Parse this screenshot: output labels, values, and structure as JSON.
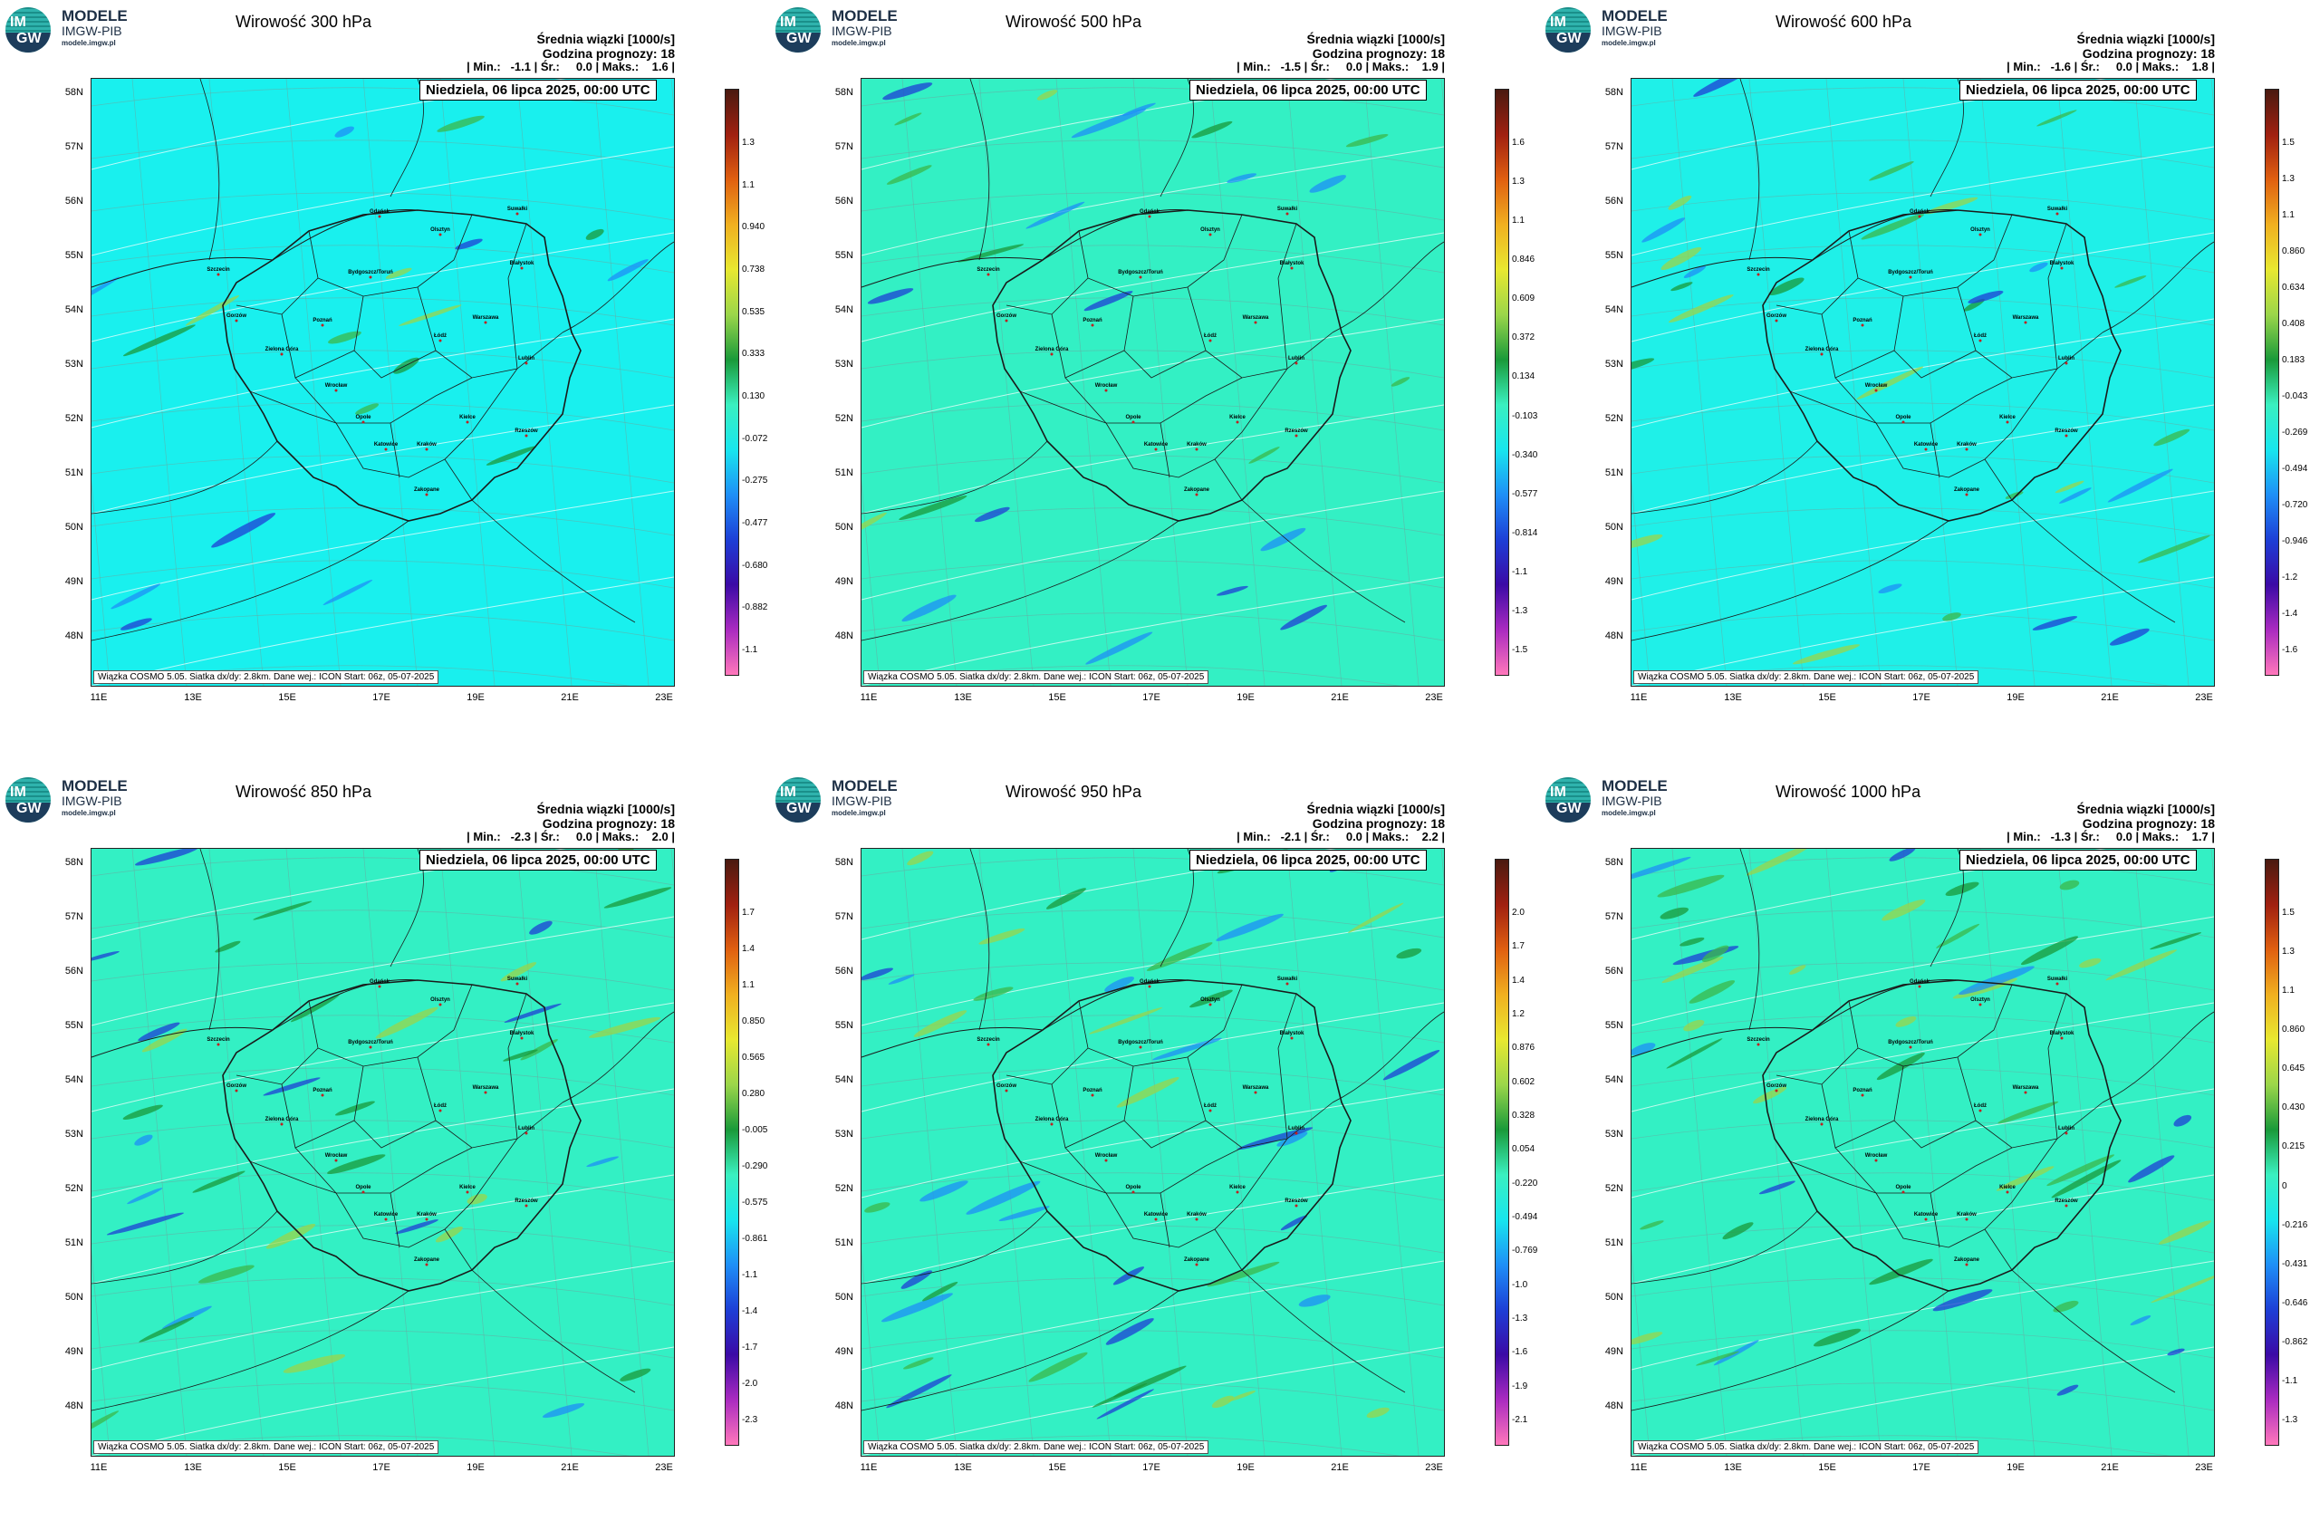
{
  "logo": {
    "line1": "MODELE",
    "line2": "IMGW-PIB",
    "line3": "modele.imgw.pl",
    "im": "IM",
    "gw": "GW"
  },
  "header": {
    "line1": "Średnia wiązki [1000/s]",
    "line2": "Godzina prognozy: 18",
    "date": "Niedziela, 06 lipca 2025, 00:00 UTC",
    "footer": "Wiązka  COSMO  5.05.  Siatka  dx/dy:  2.8km.  Dane  wej.:  ICON  Start:  06z,  05-07-2025"
  },
  "axes": {
    "lat_labels": [
      "58N",
      "57N",
      "56N",
      "55N",
      "54N",
      "53N",
      "52N",
      "51N",
      "50N",
      "49N",
      "48N"
    ],
    "lon_labels": [
      "11E",
      "13E",
      "15E",
      "17E",
      "19E",
      "21E",
      "23E"
    ]
  },
  "cities": [
    "Gdańsk",
    "Olsztyn",
    "Suwałki",
    "Szczecin",
    "Bydgoszcz/Toruń",
    "Białystok",
    "Gorzów",
    "Poznań",
    "Warszawa",
    "Zielona Góra",
    "Łódź",
    "Lublin",
    "Wrocław",
    "Opole",
    "Kielce",
    "Rzeszów",
    "Katowice",
    "Kraków",
    "Zakopane"
  ],
  "colors": {
    "bg_300": "#19f0ee",
    "bg_default": "#33f0c4",
    "border": "#1a1a1a"
  },
  "colorbar_colors": [
    "#ff77bb",
    "#aa2bc0",
    "#3b0aa6",
    "#1d3fd6",
    "#1e8ff7",
    "#18e6ee",
    "#3af0c0",
    "#1a9a3a",
    "#9bd64a",
    "#e8e830",
    "#f0b020",
    "#e06010",
    "#a02010",
    "#4a1a10"
  ],
  "panels": [
    {
      "title": "Wirowość 300 hPa",
      "min": "-1.1",
      "mean": "0.0",
      "max": "1.6",
      "bg": "#19f0ee",
      "colorbar": [
        "1.3",
        "1.1",
        "0.940",
        "0.738",
        "0.535",
        "0.333",
        "0.130",
        "-0.072",
        "-0.275",
        "-0.477",
        "-0.680",
        "-0.882",
        "-1.1"
      ]
    },
    {
      "title": "Wirowość 500 hPa",
      "min": "-1.5",
      "mean": "0.0",
      "max": "1.9",
      "bg": "#33f0c4",
      "colorbar": [
        "1.6",
        "1.3",
        "1.1",
        "0.846",
        "0.609",
        "0.372",
        "0.134",
        "-0.103",
        "-0.340",
        "-0.577",
        "-0.814",
        "-1.1",
        "-1.3",
        "-1.5"
      ]
    },
    {
      "title": "Wirowość 600 hPa",
      "min": "-1.6",
      "mean": "0.0",
      "max": "1.8",
      "bg": "#1ff0e8",
      "colorbar": [
        "1.5",
        "1.3",
        "1.1",
        "0.860",
        "0.634",
        "0.408",
        "0.183",
        "-0.043",
        "-0.269",
        "-0.494",
        "-0.720",
        "-0.946",
        "-1.2",
        "-1.4",
        "-1.6"
      ]
    },
    {
      "title": "Wirowość 850 hPa",
      "min": "-2.3",
      "mean": "0.0",
      "max": "2.0",
      "bg": "#33f0c4",
      "colorbar": [
        "1.7",
        "1.4",
        "1.1",
        "0.850",
        "0.565",
        "0.280",
        "-0.005",
        "-0.290",
        "-0.575",
        "-0.861",
        "-1.1",
        "-1.4",
        "-1.7",
        "-2.0",
        "-2.3"
      ]
    },
    {
      "title": "Wirowość 950 hPa",
      "min": "-2.1",
      "mean": "0.0",
      "max": "2.2",
      "bg": "#33f0c4",
      "colorbar": [
        "2.0",
        "1.7",
        "1.4",
        "1.2",
        "0.876",
        "0.602",
        "0.328",
        "0.054",
        "-0.220",
        "-0.494",
        "-0.769",
        "-1.0",
        "-1.3",
        "-1.6",
        "-1.9",
        "-2.1"
      ]
    },
    {
      "title": "Wirowość 1000 hPa",
      "min": "-1.3",
      "mean": "0.0",
      "max": "1.7",
      "bg": "#33f0c4",
      "colorbar": [
        "1.5",
        "1.3",
        "1.1",
        "0.860",
        "0.645",
        "0.430",
        "0.215",
        "0",
        "-0.216",
        "-0.431",
        "-0.646",
        "-0.862",
        "-1.1",
        "-1.3"
      ]
    }
  ]
}
